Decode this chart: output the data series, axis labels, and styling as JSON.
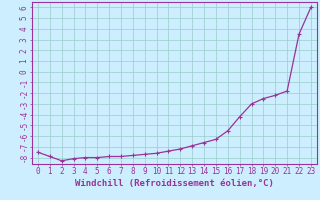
{
  "x": [
    0,
    1,
    2,
    3,
    4,
    5,
    6,
    7,
    8,
    9,
    10,
    11,
    12,
    13,
    14,
    15,
    16,
    17,
    18,
    19,
    20,
    21,
    22,
    23
  ],
  "y": [
    -7.5,
    -7.9,
    -8.3,
    -8.1,
    -8.0,
    -8.0,
    -7.9,
    -7.9,
    -7.8,
    -7.7,
    -7.6,
    -7.4,
    -7.2,
    -6.9,
    -6.6,
    -6.3,
    -5.5,
    -4.2,
    -3.0,
    -2.5,
    -2.2,
    -1.8,
    3.5,
    6.0
  ],
  "line_color": "#993399",
  "marker": "+",
  "marker_size": 3,
  "marker_linewidth": 0.8,
  "bg_color": "#cceeff",
  "grid_color": "#99cccc",
  "xlabel": "Windchill (Refroidissement éolien,°C)",
  "xlim": [
    -0.5,
    23.5
  ],
  "ylim": [
    -8.6,
    6.5
  ],
  "xticks": [
    0,
    1,
    2,
    3,
    4,
    5,
    6,
    7,
    8,
    9,
    10,
    11,
    12,
    13,
    14,
    15,
    16,
    17,
    18,
    19,
    20,
    21,
    22,
    23
  ],
  "yticks": [
    -8,
    -7,
    -6,
    -5,
    -4,
    -3,
    -2,
    -1,
    0,
    1,
    2,
    3,
    4,
    5,
    6
  ],
  "tick_color": "#993399",
  "axis_color": "#993399",
  "xlabel_fontsize": 6.5,
  "tick_fontsize": 5.5,
  "linewidth": 0.9
}
